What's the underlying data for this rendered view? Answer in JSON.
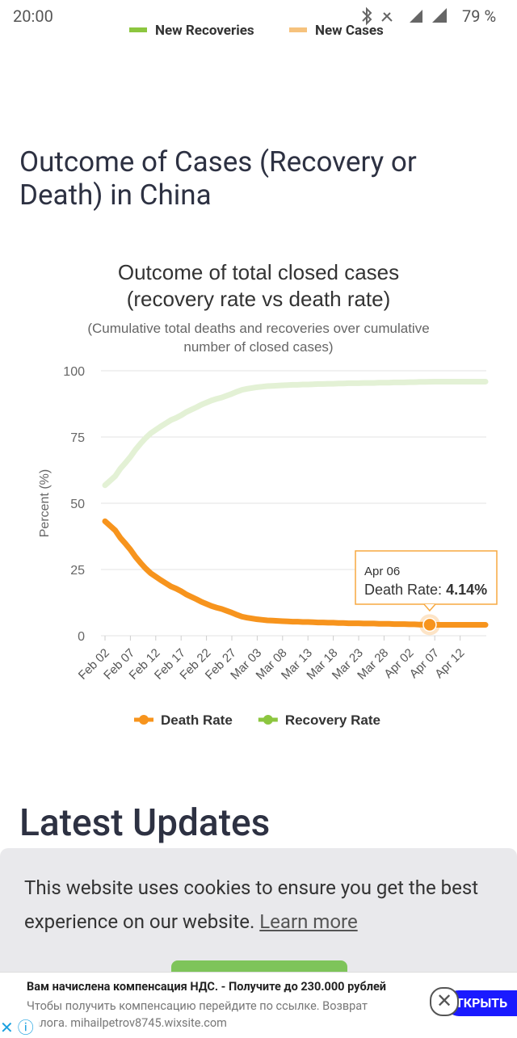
{
  "status_bar": {
    "time": "20:00",
    "battery": "79 %"
  },
  "prev_legend": [
    "New Recoveries",
    "New Cases"
  ],
  "section_heading": "Outcome of Cases (Recovery or Death) in China",
  "chart_data": {
    "type": "line",
    "title": [
      "Outcome of total closed cases",
      "(recovery rate vs death rate)"
    ],
    "subtitle": [
      "(Cumulative total deaths and recoveries over cumulative",
      "number of closed cases)"
    ],
    "y_label": "Percent (%)",
    "categories": [
      "Feb 02",
      null,
      null,
      null,
      null,
      "Feb 07",
      null,
      null,
      null,
      null,
      "Feb 12",
      null,
      null,
      null,
      null,
      "Feb 17",
      null,
      null,
      null,
      null,
      "Feb 22",
      null,
      null,
      null,
      null,
      "Feb 27",
      null,
      null,
      null,
      null,
      "Mar 03",
      null,
      null,
      null,
      null,
      "Mar 08",
      null,
      null,
      null,
      null,
      "Mar 13",
      null,
      null,
      null,
      null,
      "Mar 18",
      null,
      null,
      null,
      null,
      "Mar 23",
      null,
      null,
      null,
      null,
      "Mar 28",
      null,
      null,
      null,
      null,
      "Apr 02",
      null,
      null,
      null,
      null,
      "Apr 07",
      null,
      null,
      null,
      null,
      "Apr 12",
      null,
      null,
      null,
      null,
      null
    ],
    "series": [
      {
        "name": "Death Rate",
        "color": "#f7941d",
        "values": [
          43.2,
          41.5,
          39.8,
          37.0,
          34.8,
          32.5,
          29.8,
          27.5,
          25.4,
          23.6,
          22.3,
          21.0,
          19.8,
          18.6,
          17.8,
          16.8,
          15.6,
          14.7,
          13.8,
          12.8,
          12.0,
          11.2,
          10.6,
          10.1,
          9.4,
          8.7,
          7.9,
          7.2,
          6.8,
          6.5,
          6.2,
          6.0,
          5.8,
          5.7,
          5.6,
          5.5,
          5.4,
          5.3,
          5.3,
          5.2,
          5.2,
          5.1,
          5.0,
          5.0,
          4.9,
          4.9,
          4.8,
          4.8,
          4.7,
          4.7,
          4.7,
          4.6,
          4.6,
          4.6,
          4.5,
          4.5,
          4.5,
          4.4,
          4.4,
          4.4,
          4.3,
          4.3,
          4.2,
          4.2,
          4.14,
          4.1,
          4.1,
          4.1,
          4.1,
          4.1,
          4.1,
          4.1,
          4.1,
          4.1,
          4.1,
          4.1
        ]
      },
      {
        "name": "Recovery Rate",
        "color": "#8cc63f",
        "values": [
          56.8,
          58.5,
          60.2,
          63.0,
          65.2,
          67.5,
          70.2,
          72.5,
          74.6,
          76.4,
          77.7,
          79.0,
          80.2,
          81.4,
          82.2,
          83.2,
          84.4,
          85.3,
          86.2,
          87.2,
          88.0,
          88.8,
          89.4,
          89.9,
          90.6,
          91.3,
          92.1,
          92.8,
          93.2,
          93.5,
          93.8,
          94.0,
          94.2,
          94.3,
          94.4,
          94.5,
          94.6,
          94.7,
          94.7,
          94.8,
          94.8,
          94.9,
          95.0,
          95.0,
          95.1,
          95.1,
          95.2,
          95.2,
          95.3,
          95.3,
          95.3,
          95.4,
          95.4,
          95.4,
          95.5,
          95.5,
          95.5,
          95.6,
          95.6,
          95.6,
          95.7,
          95.7,
          95.8,
          95.8,
          95.86,
          95.9,
          95.9,
          95.9,
          95.9,
          95.9,
          95.9,
          95.9,
          95.9,
          95.9,
          95.9,
          95.9
        ]
      }
    ],
    "ylim": [
      0,
      100
    ],
    "yticks": [
      0,
      25,
      50,
      75,
      100
    ],
    "grid": true,
    "tooltip": {
      "category": "Apr 06",
      "label": "Death Rate:",
      "value": 4.14,
      "value_label": "4.14%"
    }
  },
  "latest_heading": "Latest Updates",
  "cookie": {
    "text": "This website uses cookies to ensure you get the best experience on our website.",
    "link": "Learn more"
  },
  "ad": {
    "title": "Вам начислена компенсация НДС. - Получите до 230.000 рублей",
    "body": "Чтобы получить компенсацию перейдите по ссылке. Возврат налога. mihailpetrov8745.wixsite.com",
    "button": "ТКРЫТЬ"
  }
}
